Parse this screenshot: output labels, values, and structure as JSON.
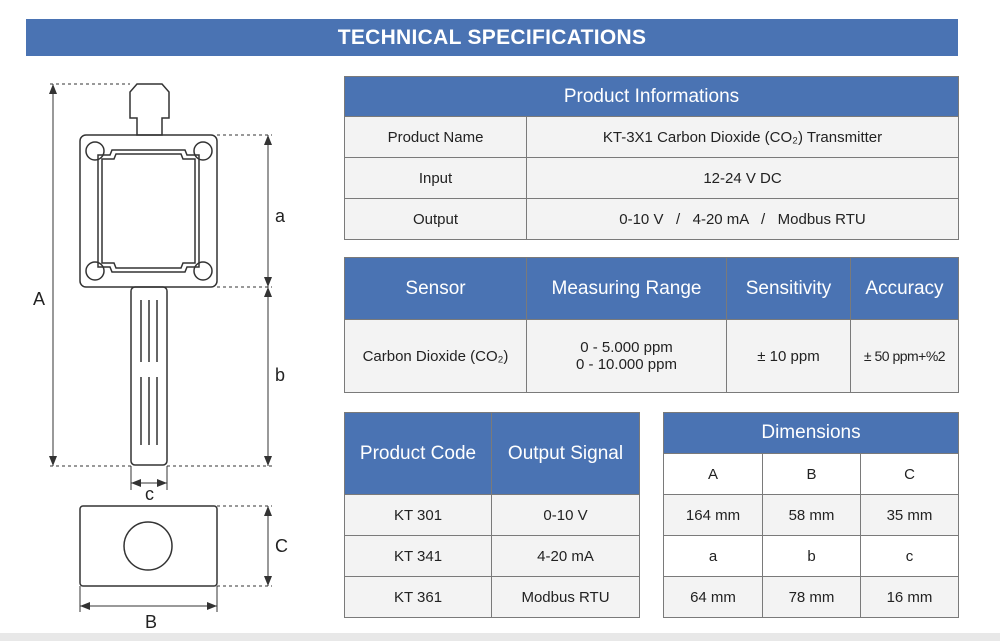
{
  "colors": {
    "header": "#4a73b3",
    "cell": "#f3f3f3",
    "border": "#7a7a7a"
  },
  "title": "TECHNICAL SPECIFICATIONS",
  "product_info": {
    "header": "Product Informations",
    "rows": [
      {
        "label": "Product Name",
        "value": "KT-3X1 Carbon Dioxide (CO₂) Transmitter"
      },
      {
        "label": "Input",
        "value": "12-24 V DC"
      },
      {
        "label": "Output",
        "value": "0-10 V   /   4-20 mA   /   Modbus RTU"
      }
    ]
  },
  "sensor_table": {
    "headers": [
      "Sensor",
      "Measuring Range",
      "Sensitivity",
      "Accuracy"
    ],
    "row": {
      "sensor": "Carbon Dioxide (CO₂)",
      "range_1": "0 - 5.000 ppm",
      "range_2": "0 - 10.000 ppm",
      "sensitivity": "± 10 ppm",
      "accuracy": "± 50 ppm+%2"
    }
  },
  "code_table": {
    "headers": [
      "Product Code",
      "Output Signal"
    ],
    "rows": [
      {
        "code": "KT 301",
        "signal": "0-10 V"
      },
      {
        "code": "KT 341",
        "signal": "4-20 mA"
      },
      {
        "code": "KT 361",
        "signal": "Modbus RTU"
      }
    ]
  },
  "dimensions_table": {
    "header": "Dimensions",
    "columns": [
      "A",
      "B",
      "C"
    ],
    "rows": [
      [
        "164 mm",
        "58 mm",
        "35 mm"
      ],
      [
        "a",
        "b",
        "c"
      ],
      [
        "64 mm",
        "78 mm",
        "16 mm"
      ]
    ]
  },
  "drawing_labels": {
    "A": "A",
    "a": "a",
    "b": "b",
    "c": "c",
    "B": "B",
    "C": "C"
  }
}
